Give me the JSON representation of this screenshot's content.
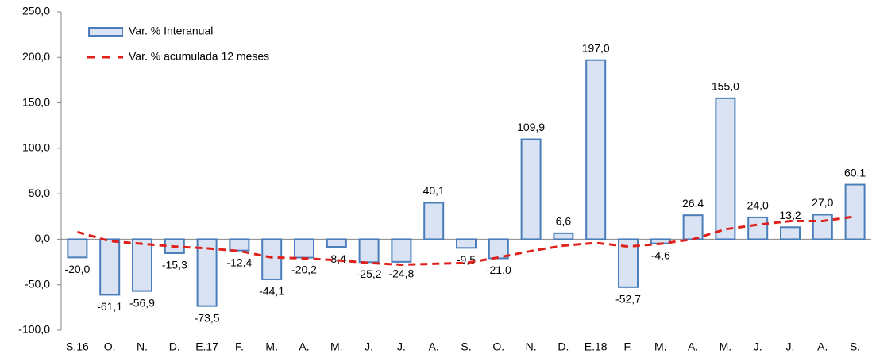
{
  "chart_data": {
    "type": "bar",
    "categories": [
      "S.16",
      "O.",
      "N.",
      "D.",
      "E.17",
      "F.",
      "M.",
      "A.",
      "M.",
      "J.",
      "J.",
      "A.",
      "S.",
      "O.",
      "N.",
      "D.",
      "E.18",
      "F.",
      "M.",
      "A.",
      "M.",
      "J.",
      "J.",
      "A.",
      "S."
    ],
    "series": [
      {
        "name": "Var. % Interanual",
        "type": "bar",
        "color": "#dae3f3",
        "edge_color": "#4a7ebb",
        "values": [
          -20.0,
          -61.1,
          -56.9,
          -15.3,
          -73.5,
          -12.4,
          -44.1,
          -20.2,
          -8.4,
          -25.2,
          -24.8,
          40.1,
          -9.5,
          -21.0,
          109.9,
          6.6,
          197.0,
          -52.7,
          -4.6,
          26.4,
          155.0,
          24.0,
          13.2,
          27.0,
          60.1
        ],
        "value_labels": [
          "-20,0",
          "-61,1",
          "-56,9",
          "-15,3",
          "-73,5",
          "-12,4",
          "-44,1",
          "-20,2",
          "-8,4",
          "-25,2",
          "-24,8",
          "40,1",
          "-9,5",
          "-21,0",
          "109,9",
          "6,6",
          "197,0",
          "-52,7",
          "-4,6",
          "26,4",
          "155,0",
          "24,0",
          "13,2",
          "27,0",
          "60,1"
        ]
      },
      {
        "name": "Var. % acumulada 12 meses",
        "type": "line",
        "color": "#e0201b",
        "values": [
          8,
          -2,
          -5,
          -8,
          -10,
          -13,
          -20,
          -21,
          -23,
          -26,
          -28,
          -27,
          -26,
          -20,
          -13,
          -7,
          -4,
          -8,
          -5,
          0,
          11,
          16,
          20,
          20,
          25
        ]
      }
    ],
    "ylim": [
      -100,
      250
    ],
    "yticks": [
      {
        "value": -100,
        "label": "-100,0"
      },
      {
        "value": -50,
        "label": "-50,0"
      },
      {
        "value": 0,
        "label": "0,0"
      },
      {
        "value": 50,
        "label": "50,0"
      },
      {
        "value": 100,
        "label": "100,0"
      },
      {
        "value": 150,
        "label": "150,0"
      },
      {
        "value": 200,
        "label": "200,0"
      },
      {
        "value": 250,
        "label": "250,0"
      }
    ],
    "legend": "upper left"
  }
}
